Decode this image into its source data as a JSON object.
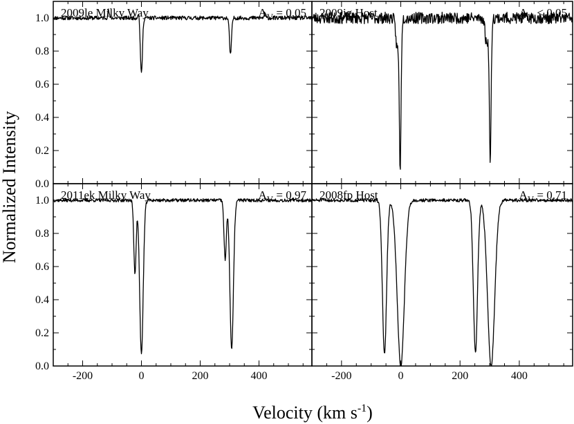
{
  "chart_data": {
    "type": "line",
    "ylabel": "Normalized Intensity",
    "xlabel_main": "Velocity (km s",
    "xlabel_sup": "-1",
    "xlabel_close": ")",
    "xlim": [
      -300,
      580
    ],
    "ylim": [
      0.0,
      1.1
    ],
    "x_ticks": [
      -200,
      0,
      200,
      400
    ],
    "x_tick_labels": [
      "-200",
      "0",
      "200",
      "400"
    ],
    "y_ticks": [
      0.0,
      0.2,
      0.4,
      0.6,
      0.8,
      1.0
    ],
    "y_tick_labels": [
      "0.0",
      "0.2",
      "0.4",
      "0.6",
      "0.8",
      "1.0"
    ],
    "panels": [
      {
        "id": "2009le",
        "title": "2009le Milky Way",
        "av_prefix": "A",
        "av_sub": "V",
        "av_value": " = 0.05",
        "noise": 0.012,
        "seed": 11,
        "lines": [
          {
            "center": 0,
            "depth": 0.34,
            "width": 3.5
          },
          {
            "center": 303,
            "depth": 0.22,
            "width": 3.5
          }
        ],
        "wiggles": [
          [
            -112,
            0.045
          ],
          [
            -10,
            0.03
          ],
          [
            420,
            0.03
          ]
        ]
      },
      {
        "id": "2009ig",
        "title": "2009ig Host",
        "av_prefix": "A",
        "av_sub": "V",
        "av_value": " < 0.05",
        "noise": 0.035,
        "seed": 23,
        "lines": [
          {
            "center": -2,
            "depth": 0.88,
            "width": 3.0
          },
          {
            "center": 302,
            "depth": 0.86,
            "width": 3.0
          },
          {
            "center": -12,
            "depth": 0.18,
            "width": 5.0
          },
          {
            "center": 290,
            "depth": 0.16,
            "width": 5.0
          }
        ],
        "wiggles": []
      },
      {
        "id": "2011ek",
        "title": "2011ek Milky Way",
        "av_prefix": "A",
        "av_sub": "V",
        "av_value": " = 0.97",
        "noise": 0.01,
        "seed": 37,
        "lines": [
          {
            "center": -22,
            "depth": 0.44,
            "width": 4.0
          },
          {
            "center": 0,
            "depth": 0.93,
            "width": 6.0
          },
          {
            "center": 285,
            "depth": 0.36,
            "width": 4.0
          },
          {
            "center": 307,
            "depth": 0.9,
            "width": 6.0
          }
        ],
        "wiggles": []
      },
      {
        "id": "2008fp",
        "title": "2008fp Host",
        "av_prefix": "A",
        "av_sub": "V",
        "av_value": " = 0.71",
        "noise": 0.01,
        "seed": 51,
        "lines": [
          {
            "center": -55,
            "depth": 0.93,
            "width": 7.0
          },
          {
            "center": 0,
            "depth": 1.0,
            "width": 12.0
          },
          {
            "center": 252,
            "depth": 0.92,
            "width": 7.0
          },
          {
            "center": 305,
            "depth": 1.0,
            "width": 12.0
          }
        ],
        "wiggles": []
      }
    ]
  }
}
